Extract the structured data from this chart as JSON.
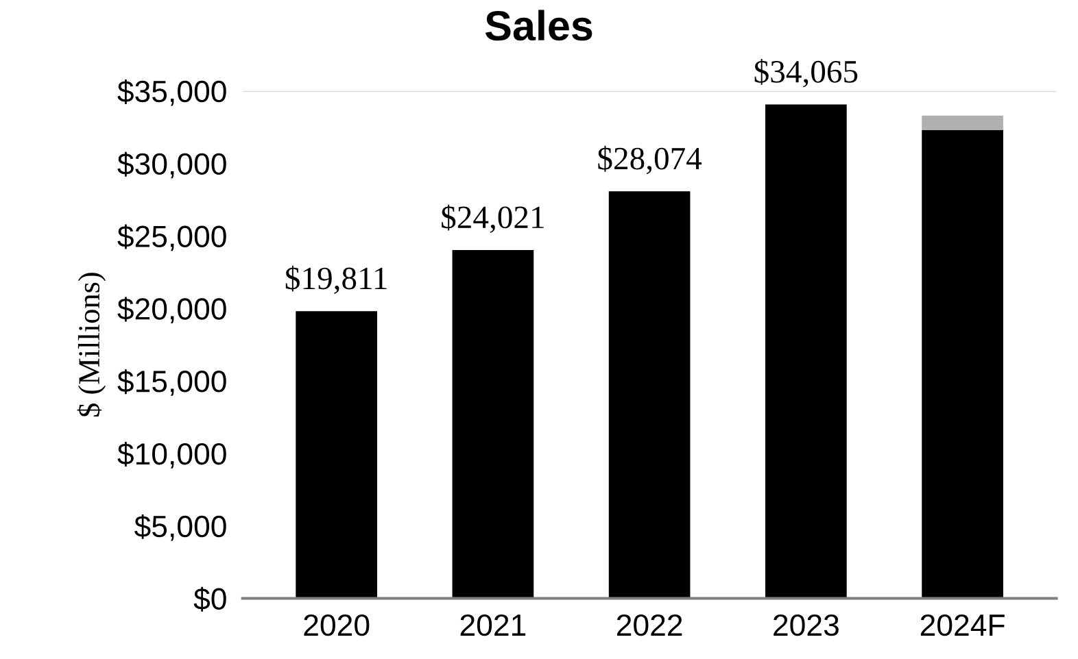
{
  "chart_data": {
    "type": "bar",
    "title": "Sales",
    "ylabel": "$ (Millions)",
    "categories": [
      "2020",
      "2021",
      "2022",
      "2023",
      "2024F"
    ],
    "stacked": true,
    "series": [
      {
        "color": "#000000",
        "values": [
          19811,
          24021,
          28074,
          34065,
          32300
        ],
        "value_labels": [
          "$19,811",
          "$24,021",
          "$28,074",
          "$34,065",
          null
        ]
      },
      {
        "color": "#b0b0b0",
        "values": [
          null,
          null,
          null,
          null,
          1000
        ]
      }
    ],
    "ylim": [
      0,
      35000
    ],
    "yticks": [
      {
        "value": 0,
        "label": "$0"
      },
      {
        "value": 5000,
        "label": "$5,000"
      },
      {
        "value": 10000,
        "label": "$10,000"
      },
      {
        "value": 15000,
        "label": "$15,000"
      },
      {
        "value": 20000,
        "label": "$20,000"
      },
      {
        "value": 25000,
        "label": "$25,000"
      },
      {
        "value": 30000,
        "label": "$30,000"
      },
      {
        "value": 35000,
        "label": "$35,000"
      }
    ],
    "ref_lines": [
      {
        "axis": "y",
        "value": 35000,
        "label": null,
        "color": "#d9d9d9"
      }
    ],
    "grid": false,
    "legend": false
  }
}
